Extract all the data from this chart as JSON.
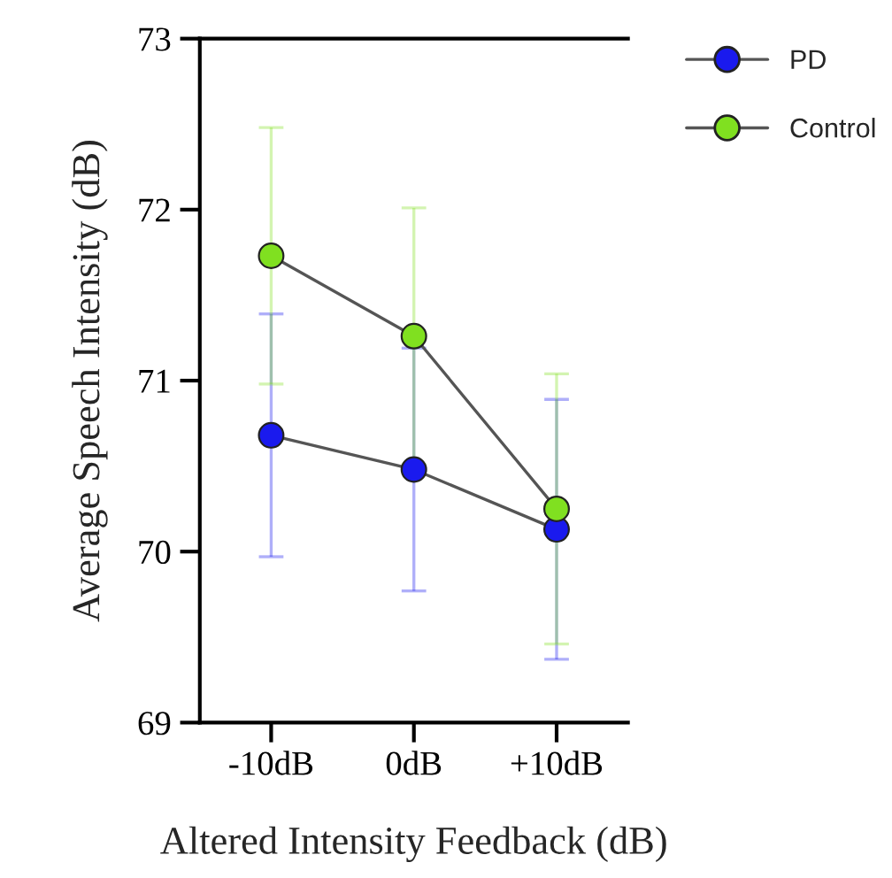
{
  "chart_data": {
    "type": "line",
    "xlabel": "Altered Intensity Feedback (dB)",
    "ylabel": "Average Speech Intensity (dB)",
    "categories": [
      "-10dB",
      "0dB",
      "+10dB"
    ],
    "series": [
      {
        "name": "PD",
        "color": "#1a1aee",
        "values": [
          70.68,
          70.48,
          70.13
        ],
        "errors": [
          0.71,
          0.71,
          0.76
        ]
      },
      {
        "name": "Control",
        "color": "#80e020",
        "values": [
          71.73,
          71.26,
          70.25
        ],
        "errors": [
          0.75,
          0.75,
          0.79
        ]
      }
    ],
    "ylim": [
      69,
      73
    ],
    "yticks": [
      69,
      70,
      71,
      72,
      73
    ],
    "grid": false,
    "legend": "top right",
    "marker": "circle",
    "line_style": "solid"
  }
}
